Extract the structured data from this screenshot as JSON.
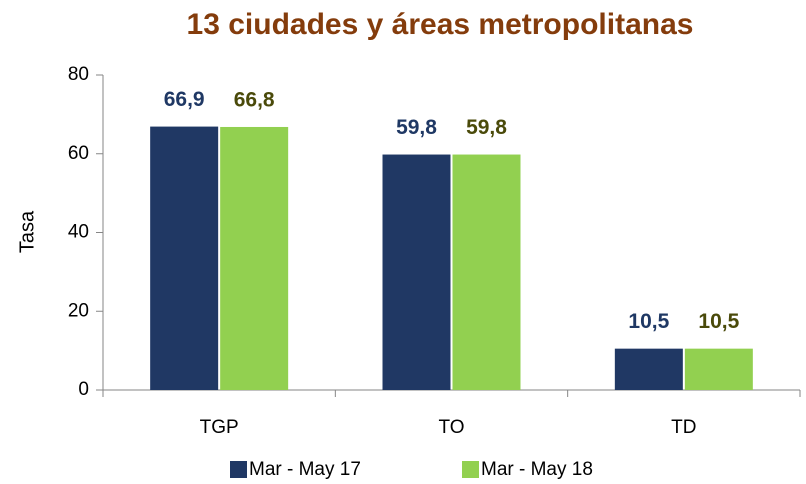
{
  "chart_data": {
    "type": "bar",
    "title": "13 ciudades y áreas metropolitanas",
    "y_label": "Tasa",
    "categories": [
      "TGP",
      "TO",
      "TD"
    ],
    "series": [
      {
        "name": "Mar - May 17",
        "color": "#203864",
        "label_color": "#1f3864",
        "values": [
          66.9,
          59.8,
          10.5
        ],
        "value_labels": [
          "66,9",
          "59,8",
          "10,5"
        ]
      },
      {
        "name": "Mar - May 18",
        "color": "#92d050",
        "label_color": "#4a4a0a",
        "values": [
          66.8,
          59.8,
          10.5
        ],
        "value_labels": [
          "66,8",
          "59,8",
          "10,5"
        ]
      }
    ],
    "ylim": [
      0,
      80
    ],
    "yticks": [
      0,
      20,
      40,
      60,
      80
    ],
    "grid": false,
    "legend": "bottom"
  }
}
